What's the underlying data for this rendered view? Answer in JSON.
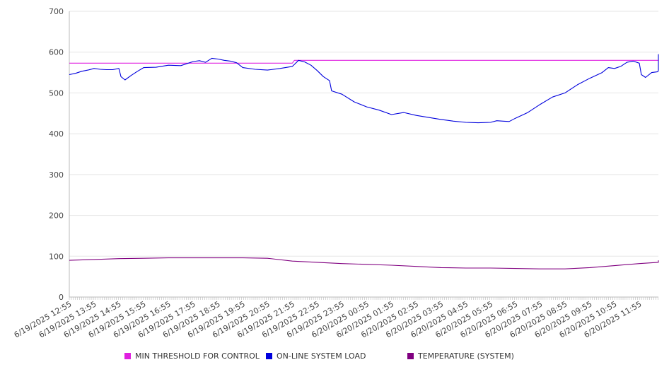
{
  "chart_data": {
    "type": "line",
    "title": "",
    "xlabel": "",
    "ylabel": "",
    "ylim": [
      0,
      700
    ],
    "yticks": [
      0,
      100,
      200,
      300,
      400,
      500,
      600,
      700
    ],
    "grid": "horizontal",
    "legend_position": "bottom",
    "x_tick_labels": [
      "6/19/2025 12:55",
      "6/19/2025 13:55",
      "6/19/2025 14:55",
      "6/19/2025 15:55",
      "6/19/2025 16:55",
      "6/19/2025 17:55",
      "6/19/2025 18:55",
      "6/19/2025 19:55",
      "6/19/2025 20:55",
      "6/19/2025 21:55",
      "6/19/2025 22:55",
      "6/19/2025 23:55",
      "6/20/2025 00:55",
      "6/20/2025 01:55",
      "6/20/2025 02:55",
      "6/20/2025 03:55",
      "6/20/2025 04:55",
      "6/20/2025 05:55",
      "6/20/2025 06:55",
      "6/20/2025 07:55",
      "6/20/2025 08:55",
      "6/20/2025 09:55",
      "6/20/2025 10:55",
      "6/20/2025 11:55"
    ],
    "x_range": [
      "6/19/2025 12:55",
      "6/20/2025 12:55"
    ],
    "series": [
      {
        "name": "MIN THRESHOLD FOR CONTROL",
        "color": "#e020e0",
        "points": [
          [
            "6/19/2025 12:55",
            573
          ],
          [
            "6/19/2025 21:55",
            573
          ],
          [
            "6/19/2025 22:00",
            580
          ],
          [
            "6/20/2025 12:55",
            580
          ]
        ]
      },
      {
        "name": "ON-LINE SYSTEM LOAD",
        "color": "#0000dd",
        "points": [
          [
            "6/19/2025 12:55",
            545
          ],
          [
            "6/19/2025 13:10",
            548
          ],
          [
            "6/19/2025 13:25",
            553
          ],
          [
            "6/19/2025 13:40",
            556
          ],
          [
            "6/19/2025 13:55",
            560
          ],
          [
            "6/19/2025 14:10",
            558
          ],
          [
            "6/19/2025 14:25",
            557
          ],
          [
            "6/19/2025 14:40",
            557
          ],
          [
            "6/19/2025 14:55",
            560
          ],
          [
            "6/19/2025 15:00",
            540
          ],
          [
            "6/19/2025 15:10",
            532
          ],
          [
            "6/19/2025 15:25",
            543
          ],
          [
            "6/19/2025 15:40",
            553
          ],
          [
            "6/19/2025 15:55",
            562
          ],
          [
            "6/19/2025 16:25",
            563
          ],
          [
            "6/19/2025 16:55",
            568
          ],
          [
            "6/19/2025 17:25",
            567
          ],
          [
            "6/19/2025 17:55",
            577
          ],
          [
            "6/19/2025 18:10",
            579
          ],
          [
            "6/19/2025 18:25",
            575
          ],
          [
            "6/19/2025 18:40",
            585
          ],
          [
            "6/19/2025 18:55",
            583
          ],
          [
            "6/19/2025 19:10",
            580
          ],
          [
            "6/19/2025 19:25",
            578
          ],
          [
            "6/19/2025 19:40",
            574
          ],
          [
            "6/19/2025 19:55",
            562
          ],
          [
            "6/19/2025 20:25",
            558
          ],
          [
            "6/19/2025 20:55",
            556
          ],
          [
            "6/19/2025 21:25",
            560
          ],
          [
            "6/19/2025 21:55",
            565
          ],
          [
            "6/19/2025 22:10",
            580
          ],
          [
            "6/19/2025 22:25",
            576
          ],
          [
            "6/19/2025 22:40",
            568
          ],
          [
            "6/19/2025 22:55",
            555
          ],
          [
            "6/19/2025 23:10",
            540
          ],
          [
            "6/19/2025 23:25",
            530
          ],
          [
            "6/19/2025 23:30",
            505
          ],
          [
            "6/19/2025 23:55",
            497
          ],
          [
            "6/20/2025 00:25",
            478
          ],
          [
            "6/20/2025 00:55",
            466
          ],
          [
            "6/20/2025 01:25",
            458
          ],
          [
            "6/20/2025 01:55",
            447
          ],
          [
            "6/20/2025 02:25",
            452
          ],
          [
            "6/20/2025 02:55",
            445
          ],
          [
            "6/20/2025 03:25",
            440
          ],
          [
            "6/20/2025 03:55",
            435
          ],
          [
            "6/20/2025 04:25",
            431
          ],
          [
            "6/20/2025 04:55",
            428
          ],
          [
            "6/20/2025 05:25",
            427
          ],
          [
            "6/20/2025 05:55",
            428
          ],
          [
            "6/20/2025 06:10",
            432
          ],
          [
            "6/20/2025 06:25",
            431
          ],
          [
            "6/20/2025 06:40",
            430
          ],
          [
            "6/20/2025 06:55",
            438
          ],
          [
            "6/20/2025 07:25",
            452
          ],
          [
            "6/20/2025 07:55",
            472
          ],
          [
            "6/20/2025 08:25",
            490
          ],
          [
            "6/20/2025 08:55",
            500
          ],
          [
            "6/20/2025 09:25",
            520
          ],
          [
            "6/20/2025 09:55",
            536
          ],
          [
            "6/20/2025 10:25",
            550
          ],
          [
            "6/20/2025 10:40",
            562
          ],
          [
            "6/20/2025 10:55",
            560
          ],
          [
            "6/20/2025 11:10",
            565
          ],
          [
            "6/20/2025 11:25",
            575
          ],
          [
            "6/20/2025 11:40",
            578
          ],
          [
            "6/20/2025 11:55",
            573
          ],
          [
            "6/20/2025 12:00",
            545
          ],
          [
            "6/20/2025 12:10",
            538
          ],
          [
            "6/20/2025 12:25",
            550
          ],
          [
            "6/20/2025 12:40",
            552
          ],
          [
            "6/20/2025 12:55",
            556
          ],
          [
            "6/20/2025 13:10",
            575
          ],
          [
            "6/20/2025 13:25",
            585
          ],
          [
            "6/20/2025 13:40",
            590
          ],
          [
            "6/20/2025 13:55",
            595
          ]
        ]
      },
      {
        "name": "TEMPERATURE (SYSTEM)",
        "color": "#800080",
        "points": [
          [
            "6/19/2025 12:55",
            90
          ],
          [
            "6/19/2025 13:55",
            92
          ],
          [
            "6/19/2025 14:55",
            94
          ],
          [
            "6/19/2025 15:55",
            95
          ],
          [
            "6/19/2025 16:55",
            96
          ],
          [
            "6/19/2025 17:55",
            96
          ],
          [
            "6/19/2025 18:55",
            96
          ],
          [
            "6/19/2025 19:55",
            96
          ],
          [
            "6/19/2025 20:55",
            95
          ],
          [
            "6/19/2025 21:55",
            88
          ],
          [
            "6/19/2025 22:55",
            85
          ],
          [
            "6/19/2025 23:55",
            82
          ],
          [
            "6/20/2025 00:55",
            80
          ],
          [
            "6/20/2025 01:55",
            78
          ],
          [
            "6/20/2025 02:55",
            75
          ],
          [
            "6/20/2025 03:55",
            72
          ],
          [
            "6/20/2025 04:55",
            71
          ],
          [
            "6/20/2025 05:55",
            71
          ],
          [
            "6/20/2025 06:55",
            70
          ],
          [
            "6/20/2025 07:55",
            69
          ],
          [
            "6/20/2025 08:55",
            69
          ],
          [
            "6/20/2025 09:55",
            72
          ],
          [
            "6/20/2025 10:55",
            77
          ],
          [
            "6/20/2025 11:55",
            82
          ],
          [
            "6/20/2025 12:55",
            85
          ],
          [
            "6/20/2025 13:55",
            90
          ]
        ]
      }
    ]
  }
}
